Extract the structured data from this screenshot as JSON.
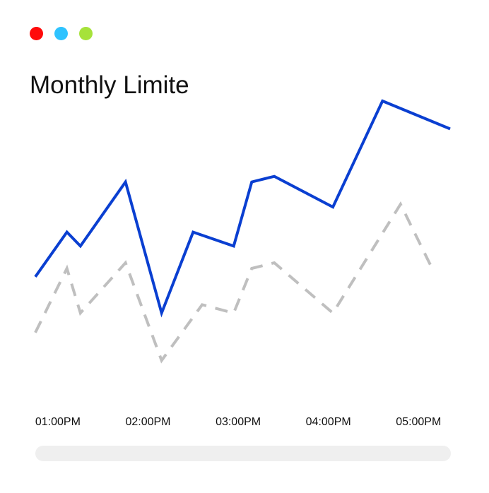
{
  "window": {
    "controls": [
      {
        "name": "close-dot",
        "color": "#ff0b0b"
      },
      {
        "name": "minimize-dot",
        "color": "#2ec3ff"
      },
      {
        "name": "maximize-dot",
        "color": "#a6e23a"
      }
    ]
  },
  "chart_data": {
    "type": "line",
    "title": "Monthly Limite",
    "xlabel": "",
    "ylabel": "",
    "x_ticks": [
      "01:00PM",
      "02:00PM",
      "03:00PM",
      "04:00PM",
      "05:00PM"
    ],
    "xlim": [
      12.75,
      17.35
    ],
    "ylim": [
      0,
      100
    ],
    "grid": false,
    "legend": false,
    "series": [
      {
        "color": "#0a3fd1",
        "style": "solid",
        "points": [
          {
            "x": 12.75,
            "y": 37.0
          },
          {
            "x": 13.1,
            "y": 53.0
          },
          {
            "x": 13.25,
            "y": 48.0
          },
          {
            "x": 13.75,
            "y": 71.0
          },
          {
            "x": 14.15,
            "y": 24.0
          },
          {
            "x": 14.5,
            "y": 53.0
          },
          {
            "x": 14.95,
            "y": 48.0
          },
          {
            "x": 15.15,
            "y": 71.0
          },
          {
            "x": 15.4,
            "y": 73.0
          },
          {
            "x": 16.05,
            "y": 62.0
          },
          {
            "x": 16.6,
            "y": 100.0
          },
          {
            "x": 17.35,
            "y": 90.0
          }
        ]
      },
      {
        "color": "#bfbfbf",
        "style": "dashed",
        "points": [
          {
            "x": 12.75,
            "y": 17.0
          },
          {
            "x": 13.1,
            "y": 40.0
          },
          {
            "x": 13.25,
            "y": 24.0
          },
          {
            "x": 13.75,
            "y": 42.0
          },
          {
            "x": 14.15,
            "y": 7.0
          },
          {
            "x": 14.6,
            "y": 27.0
          },
          {
            "x": 14.95,
            "y": 24.0
          },
          {
            "x": 15.15,
            "y": 40.0
          },
          {
            "x": 15.4,
            "y": 42.0
          },
          {
            "x": 16.05,
            "y": 24.0
          },
          {
            "x": 16.8,
            "y": 63.0
          },
          {
            "x": 17.15,
            "y": 40.0
          }
        ]
      }
    ]
  }
}
